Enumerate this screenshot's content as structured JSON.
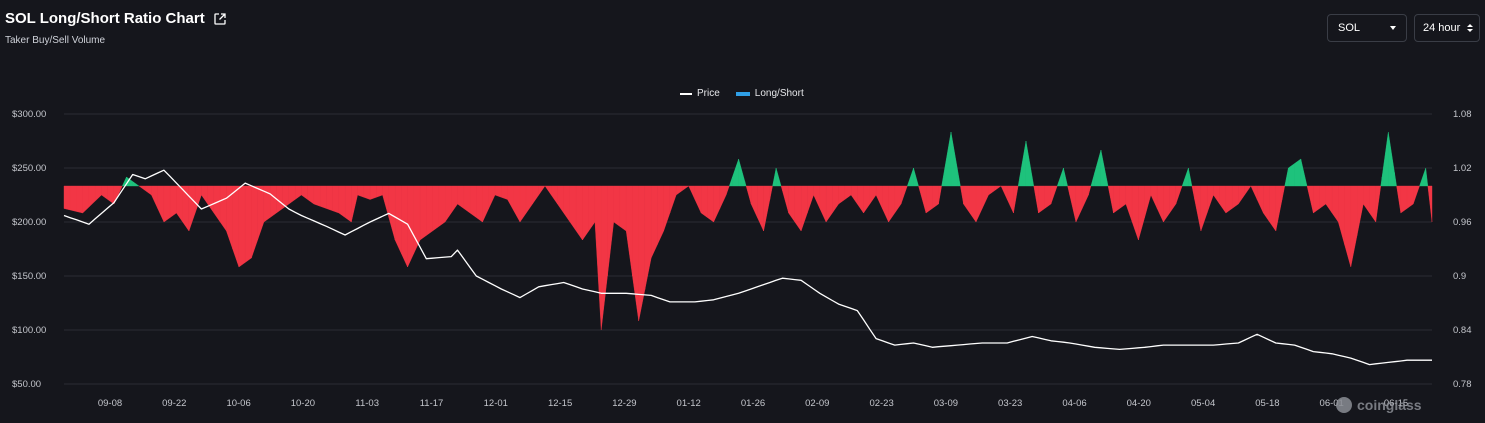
{
  "header": {
    "title": "SOL Long/Short Ratio Chart",
    "subtitle": "Taker Buy/Sell Volume"
  },
  "controls": {
    "coin_value": "SOL",
    "interval_value": "24 hour"
  },
  "legend": {
    "price_label": "Price",
    "ratio_label": "Long/Short"
  },
  "watermark": "coinglass",
  "colors": {
    "background": "#15161c",
    "price_line": "#ffffff",
    "long": "#1ec27c",
    "short": "#f23645",
    "legend_ratio": "#2f9fe6",
    "grid": "#2a2c33"
  },
  "icons": {
    "external_link": "external-link-icon",
    "dropdown": "chevron-down-icon",
    "stepper": "up-down-icon"
  },
  "chart_data": {
    "type": "area",
    "x_tick_labels": [
      "09-08",
      "09-22",
      "10-06",
      "10-20",
      "11-03",
      "11-17",
      "12-01",
      "12-15",
      "12-29",
      "01-12",
      "01-26",
      "02-09",
      "02-23",
      "03-09",
      "03-23",
      "04-06",
      "04-20",
      "05-04",
      "05-18",
      "06-01",
      "06-15"
    ],
    "y_left": {
      "ticks": [
        "$300.00",
        "$250.00",
        "$200.00",
        "$150.00",
        "$100.00",
        "$50.00"
      ],
      "range": [
        50,
        300
      ]
    },
    "y_right": {
      "ticks": [
        "1.08",
        "1.02",
        "0.96",
        "0.9",
        "0.84",
        "0.78"
      ],
      "range": [
        0.78,
        1.08
      ],
      "baseline": 1.0
    },
    "price_anchors": [
      [
        0,
        206
      ],
      [
        4,
        198
      ],
      [
        8,
        218
      ],
      [
        11,
        244
      ],
      [
        13,
        240
      ],
      [
        16,
        248
      ],
      [
        18,
        236
      ],
      [
        21,
        218
      ],
      [
        22,
        212
      ],
      [
        26,
        222
      ],
      [
        29,
        236
      ],
      [
        33,
        226
      ],
      [
        36,
        212
      ],
      [
        38,
        206
      ],
      [
        42,
        196
      ],
      [
        45,
        188
      ],
      [
        49,
        200
      ],
      [
        52,
        208
      ],
      [
        55,
        198
      ],
      [
        58,
        166
      ],
      [
        62,
        168
      ],
      [
        63,
        174
      ],
      [
        66,
        150
      ],
      [
        70,
        138
      ],
      [
        73,
        130
      ],
      [
        76,
        140
      ],
      [
        80,
        144
      ],
      [
        83,
        138
      ],
      [
        86,
        134
      ],
      [
        90,
        134
      ],
      [
        94,
        132
      ],
      [
        97,
        126
      ],
      [
        101,
        126
      ],
      [
        104,
        128
      ],
      [
        108,
        134
      ],
      [
        112,
        142
      ],
      [
        115,
        148
      ],
      [
        118,
        146
      ],
      [
        121,
        134
      ],
      [
        124,
        124
      ],
      [
        127,
        118
      ],
      [
        130,
        92
      ],
      [
        133,
        86
      ],
      [
        136,
        88
      ],
      [
        139,
        84
      ],
      [
        143,
        86
      ],
      [
        147,
        88
      ],
      [
        151,
        88
      ],
      [
        155,
        94
      ],
      [
        158,
        90
      ],
      [
        161,
        88
      ],
      [
        165,
        84
      ],
      [
        169,
        82
      ],
      [
        173,
        84
      ],
      [
        176,
        86
      ],
      [
        180,
        86
      ],
      [
        184,
        86
      ],
      [
        188,
        88
      ],
      [
        191,
        96
      ],
      [
        194,
        88
      ],
      [
        197,
        86
      ],
      [
        200,
        80
      ],
      [
        203,
        78
      ],
      [
        206,
        74
      ],
      [
        209,
        68
      ],
      [
        212,
        70
      ],
      [
        215,
        72
      ],
      [
        218,
        72
      ],
      [
        219,
        72
      ]
    ],
    "ratio_anchors": [
      [
        0,
        0.975
      ],
      [
        3,
        0.97
      ],
      [
        6,
        0.99
      ],
      [
        8,
        0.98
      ],
      [
        10,
        1.01
      ],
      [
        12,
        1.0
      ],
      [
        14,
        0.99
      ],
      [
        16,
        0.96
      ],
      [
        18,
        0.97
      ],
      [
        20,
        0.95
      ],
      [
        22,
        0.99
      ],
      [
        24,
        0.97
      ],
      [
        26,
        0.95
      ],
      [
        28,
        0.91
      ],
      [
        30,
        0.92
      ],
      [
        32,
        0.96
      ],
      [
        34,
        0.97
      ],
      [
        36,
        0.98
      ],
      [
        38,
        0.99
      ],
      [
        40,
        0.98
      ],
      [
        42,
        0.975
      ],
      [
        44,
        0.97
      ],
      [
        46,
        0.96
      ],
      [
        47,
        0.99
      ],
      [
        49,
        0.985
      ],
      [
        51,
        0.99
      ],
      [
        53,
        0.94
      ],
      [
        55,
        0.91
      ],
      [
        57,
        0.94
      ],
      [
        59,
        0.95
      ],
      [
        61,
        0.96
      ],
      [
        63,
        0.98
      ],
      [
        65,
        0.97
      ],
      [
        67,
        0.96
      ],
      [
        69,
        0.99
      ],
      [
        71,
        0.985
      ],
      [
        73,
        0.96
      ],
      [
        75,
        0.98
      ],
      [
        77,
        1.0
      ],
      [
        79,
        0.98
      ],
      [
        81,
        0.96
      ],
      [
        83,
        0.94
      ],
      [
        85,
        0.96
      ],
      [
        86,
        0.84
      ],
      [
        88,
        0.96
      ],
      [
        90,
        0.95
      ],
      [
        92,
        0.85
      ],
      [
        94,
        0.92
      ],
      [
        96,
        0.95
      ],
      [
        98,
        0.99
      ],
      [
        100,
        1.0
      ],
      [
        102,
        0.97
      ],
      [
        104,
        0.96
      ],
      [
        106,
        0.99
      ],
      [
        108,
        1.03
      ],
      [
        110,
        0.98
      ],
      [
        112,
        0.95
      ],
      [
        114,
        1.02
      ],
      [
        116,
        0.97
      ],
      [
        118,
        0.95
      ],
      [
        120,
        0.99
      ],
      [
        122,
        0.96
      ],
      [
        124,
        0.98
      ],
      [
        126,
        0.99
      ],
      [
        128,
        0.97
      ],
      [
        130,
        0.99
      ],
      [
        132,
        0.96
      ],
      [
        134,
        0.98
      ],
      [
        136,
        1.02
      ],
      [
        138,
        0.97
      ],
      [
        140,
        0.98
      ],
      [
        142,
        1.06
      ],
      [
        144,
        0.98
      ],
      [
        146,
        0.96
      ],
      [
        148,
        0.99
      ],
      [
        150,
        1.0
      ],
      [
        152,
        0.97
      ],
      [
        154,
        1.05
      ],
      [
        156,
        0.97
      ],
      [
        158,
        0.98
      ],
      [
        160,
        1.02
      ],
      [
        162,
        0.96
      ],
      [
        164,
        0.99
      ],
      [
        166,
        1.04
      ],
      [
        168,
        0.97
      ],
      [
        170,
        0.98
      ],
      [
        172,
        0.94
      ],
      [
        174,
        0.99
      ],
      [
        176,
        0.96
      ],
      [
        178,
        0.98
      ],
      [
        180,
        1.02
      ],
      [
        182,
        0.95
      ],
      [
        184,
        0.99
      ],
      [
        186,
        0.97
      ],
      [
        188,
        0.98
      ],
      [
        190,
        1.0
      ],
      [
        192,
        0.97
      ],
      [
        194,
        0.95
      ],
      [
        196,
        1.02
      ],
      [
        198,
        1.03
      ],
      [
        200,
        0.97
      ],
      [
        202,
        0.98
      ],
      [
        204,
        0.96
      ],
      [
        206,
        0.91
      ],
      [
        208,
        0.98
      ],
      [
        210,
        0.96
      ],
      [
        212,
        1.06
      ],
      [
        214,
        0.97
      ],
      [
        216,
        0.98
      ],
      [
        218,
        1.02
      ],
      [
        219,
        0.96
      ]
    ],
    "n_points": 220
  }
}
